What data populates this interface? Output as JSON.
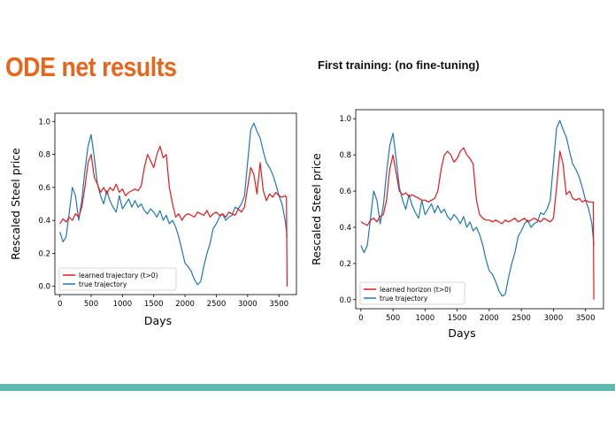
{
  "slide": {
    "title": "ODE net results",
    "subtitle": "First training: (no fine-tuning)"
  },
  "colors": {
    "title": "#e8661c",
    "footer_bar": "#5fb8ad",
    "learned": "#e31a1c",
    "true": "#1f77b4"
  },
  "chart_data": [
    {
      "type": "line",
      "xlabel": "Days",
      "ylabel": "Rescaled Steel price",
      "xlim": [
        -80,
        3780
      ],
      "ylim": [
        -0.05,
        1.05
      ],
      "xticks": [
        0,
        500,
        1000,
        1500,
        2000,
        2500,
        3000,
        3500
      ],
      "yticks": [
        0.0,
        0.2,
        0.4,
        0.6,
        0.8,
        1.0
      ],
      "legend_position": "lower-left",
      "series": [
        {
          "name": "learned trajectory (t>0)",
          "color": "#e31a1c",
          "x": [
            0,
            50,
            100,
            150,
            200,
            250,
            300,
            350,
            400,
            450,
            500,
            550,
            600,
            650,
            700,
            750,
            800,
            850,
            900,
            950,
            1000,
            1050,
            1100,
            1150,
            1200,
            1250,
            1300,
            1350,
            1400,
            1450,
            1500,
            1550,
            1600,
            1650,
            1700,
            1750,
            1800,
            1850,
            1900,
            1950,
            2000,
            2050,
            2100,
            2150,
            2200,
            2250,
            2300,
            2350,
            2400,
            2450,
            2500,
            2550,
            2600,
            2650,
            2700,
            2750,
            2800,
            2850,
            2900,
            2950,
            3000,
            3050,
            3100,
            3150,
            3200,
            3250,
            3300,
            3350,
            3400,
            3450,
            3500,
            3550,
            3600,
            3620,
            3630
          ],
          "values": [
            0.38,
            0.41,
            0.39,
            0.42,
            0.4,
            0.44,
            0.42,
            0.48,
            0.6,
            0.75,
            0.8,
            0.66,
            0.62,
            0.57,
            0.6,
            0.56,
            0.6,
            0.58,
            0.62,
            0.57,
            0.59,
            0.55,
            0.57,
            0.58,
            0.59,
            0.58,
            0.61,
            0.72,
            0.8,
            0.76,
            0.72,
            0.8,
            0.85,
            0.78,
            0.8,
            0.6,
            0.5,
            0.42,
            0.44,
            0.4,
            0.43,
            0.44,
            0.43,
            0.42,
            0.45,
            0.44,
            0.43,
            0.46,
            0.42,
            0.44,
            0.45,
            0.43,
            0.44,
            0.42,
            0.45,
            0.44,
            0.43,
            0.47,
            0.45,
            0.48,
            0.6,
            0.72,
            0.68,
            0.56,
            0.75,
            0.58,
            0.52,
            0.56,
            0.54,
            0.57,
            0.55,
            0.54,
            0.55,
            0.54,
            0.0
          ]
        },
        {
          "name": "true trajectory",
          "color": "#1f77b4",
          "x": [
            0,
            50,
            100,
            150,
            200,
            250,
            300,
            350,
            400,
            450,
            500,
            550,
            600,
            650,
            700,
            750,
            800,
            850,
            900,
            950,
            1000,
            1050,
            1100,
            1150,
            1200,
            1250,
            1300,
            1350,
            1400,
            1450,
            1500,
            1550,
            1600,
            1650,
            1700,
            1750,
            1800,
            1850,
            1900,
            1950,
            2000,
            2050,
            2100,
            2150,
            2200,
            2250,
            2300,
            2350,
            2400,
            2450,
            2500,
            2550,
            2600,
            2650,
            2700,
            2750,
            2800,
            2850,
            2900,
            2950,
            3000,
            3050,
            3100,
            3150,
            3200,
            3250,
            3300,
            3350,
            3400,
            3450,
            3500,
            3550,
            3600,
            3630
          ],
          "values": [
            0.33,
            0.27,
            0.3,
            0.45,
            0.6,
            0.55,
            0.4,
            0.52,
            0.7,
            0.85,
            0.92,
            0.78,
            0.62,
            0.55,
            0.5,
            0.58,
            0.52,
            0.48,
            0.45,
            0.55,
            0.47,
            0.5,
            0.53,
            0.48,
            0.52,
            0.48,
            0.5,
            0.46,
            0.44,
            0.47,
            0.45,
            0.42,
            0.46,
            0.4,
            0.43,
            0.38,
            0.4,
            0.36,
            0.3,
            0.22,
            0.14,
            0.12,
            0.09,
            0.04,
            0.01,
            0.03,
            0.12,
            0.2,
            0.26,
            0.35,
            0.38,
            0.42,
            0.44,
            0.4,
            0.42,
            0.43,
            0.48,
            0.47,
            0.5,
            0.55,
            0.75,
            0.95,
            0.99,
            0.94,
            0.9,
            0.82,
            0.75,
            0.72,
            0.68,
            0.62,
            0.55,
            0.5,
            0.4,
            0.3
          ]
        }
      ]
    },
    {
      "type": "line",
      "xlabel": "Days",
      "ylabel": "Rescaled Steel price",
      "xlim": [
        -80,
        3780
      ],
      "ylim": [
        -0.05,
        1.05
      ],
      "xticks": [
        0,
        500,
        1000,
        1500,
        2000,
        2500,
        3000,
        3500
      ],
      "yticks": [
        0.0,
        0.2,
        0.4,
        0.6,
        0.8,
        1.0
      ],
      "legend_position": "lower-left",
      "series": [
        {
          "name": "learned horizon (t>0)",
          "color": "#e31a1c",
          "x": [
            0,
            50,
            100,
            150,
            200,
            250,
            300,
            350,
            400,
            450,
            500,
            550,
            600,
            650,
            700,
            750,
            800,
            850,
            900,
            950,
            1000,
            1050,
            1100,
            1150,
            1200,
            1250,
            1300,
            1350,
            1400,
            1450,
            1500,
            1550,
            1600,
            1650,
            1700,
            1750,
            1800,
            1850,
            1900,
            1950,
            2000,
            2050,
            2100,
            2150,
            2200,
            2250,
            2300,
            2350,
            2400,
            2450,
            2500,
            2550,
            2600,
            2650,
            2700,
            2750,
            2800,
            2850,
            2900,
            2950,
            3000,
            3050,
            3100,
            3150,
            3200,
            3250,
            3300,
            3350,
            3400,
            3450,
            3500,
            3550,
            3600,
            3620,
            3630
          ],
          "values": [
            0.43,
            0.42,
            0.41,
            0.44,
            0.45,
            0.43,
            0.46,
            0.47,
            0.55,
            0.72,
            0.8,
            0.7,
            0.6,
            0.58,
            0.59,
            0.57,
            0.58,
            0.57,
            0.56,
            0.55,
            0.55,
            0.54,
            0.55,
            0.56,
            0.6,
            0.72,
            0.8,
            0.82,
            0.8,
            0.76,
            0.78,
            0.82,
            0.84,
            0.8,
            0.78,
            0.75,
            0.55,
            0.47,
            0.45,
            0.44,
            0.44,
            0.43,
            0.44,
            0.43,
            0.42,
            0.44,
            0.43,
            0.44,
            0.45,
            0.43,
            0.44,
            0.45,
            0.43,
            0.44,
            0.45,
            0.44,
            0.43,
            0.45,
            0.44,
            0.43,
            0.45,
            0.62,
            0.82,
            0.75,
            0.58,
            0.6,
            0.56,
            0.55,
            0.56,
            0.54,
            0.55,
            0.54,
            0.54,
            0.54,
            0.0
          ]
        },
        {
          "name": "true trajectory",
          "color": "#1f77b4",
          "x": [
            0,
            50,
            100,
            150,
            200,
            250,
            300,
            350,
            400,
            450,
            500,
            550,
            600,
            650,
            700,
            750,
            800,
            850,
            900,
            950,
            1000,
            1050,
            1100,
            1150,
            1200,
            1250,
            1300,
            1350,
            1400,
            1450,
            1500,
            1550,
            1600,
            1650,
            1700,
            1750,
            1800,
            1850,
            1900,
            1950,
            2000,
            2050,
            2100,
            2150,
            2200,
            2250,
            2300,
            2350,
            2400,
            2450,
            2500,
            2550,
            2600,
            2650,
            2700,
            2750,
            2800,
            2850,
            2900,
            2950,
            3000,
            3050,
            3100,
            3150,
            3200,
            3250,
            3300,
            3350,
            3400,
            3450,
            3500,
            3550,
            3600,
            3630
          ],
          "values": [
            0.3,
            0.26,
            0.3,
            0.45,
            0.6,
            0.55,
            0.42,
            0.52,
            0.7,
            0.85,
            0.92,
            0.78,
            0.62,
            0.55,
            0.5,
            0.58,
            0.52,
            0.48,
            0.45,
            0.55,
            0.47,
            0.5,
            0.53,
            0.48,
            0.52,
            0.48,
            0.5,
            0.46,
            0.44,
            0.47,
            0.45,
            0.42,
            0.46,
            0.4,
            0.43,
            0.38,
            0.4,
            0.36,
            0.3,
            0.22,
            0.16,
            0.14,
            0.1,
            0.05,
            0.02,
            0.03,
            0.12,
            0.2,
            0.26,
            0.35,
            0.38,
            0.42,
            0.44,
            0.4,
            0.42,
            0.43,
            0.48,
            0.47,
            0.5,
            0.55,
            0.75,
            0.95,
            0.99,
            0.94,
            0.9,
            0.82,
            0.75,
            0.72,
            0.68,
            0.62,
            0.55,
            0.5,
            0.42,
            0.3
          ]
        }
      ]
    }
  ]
}
